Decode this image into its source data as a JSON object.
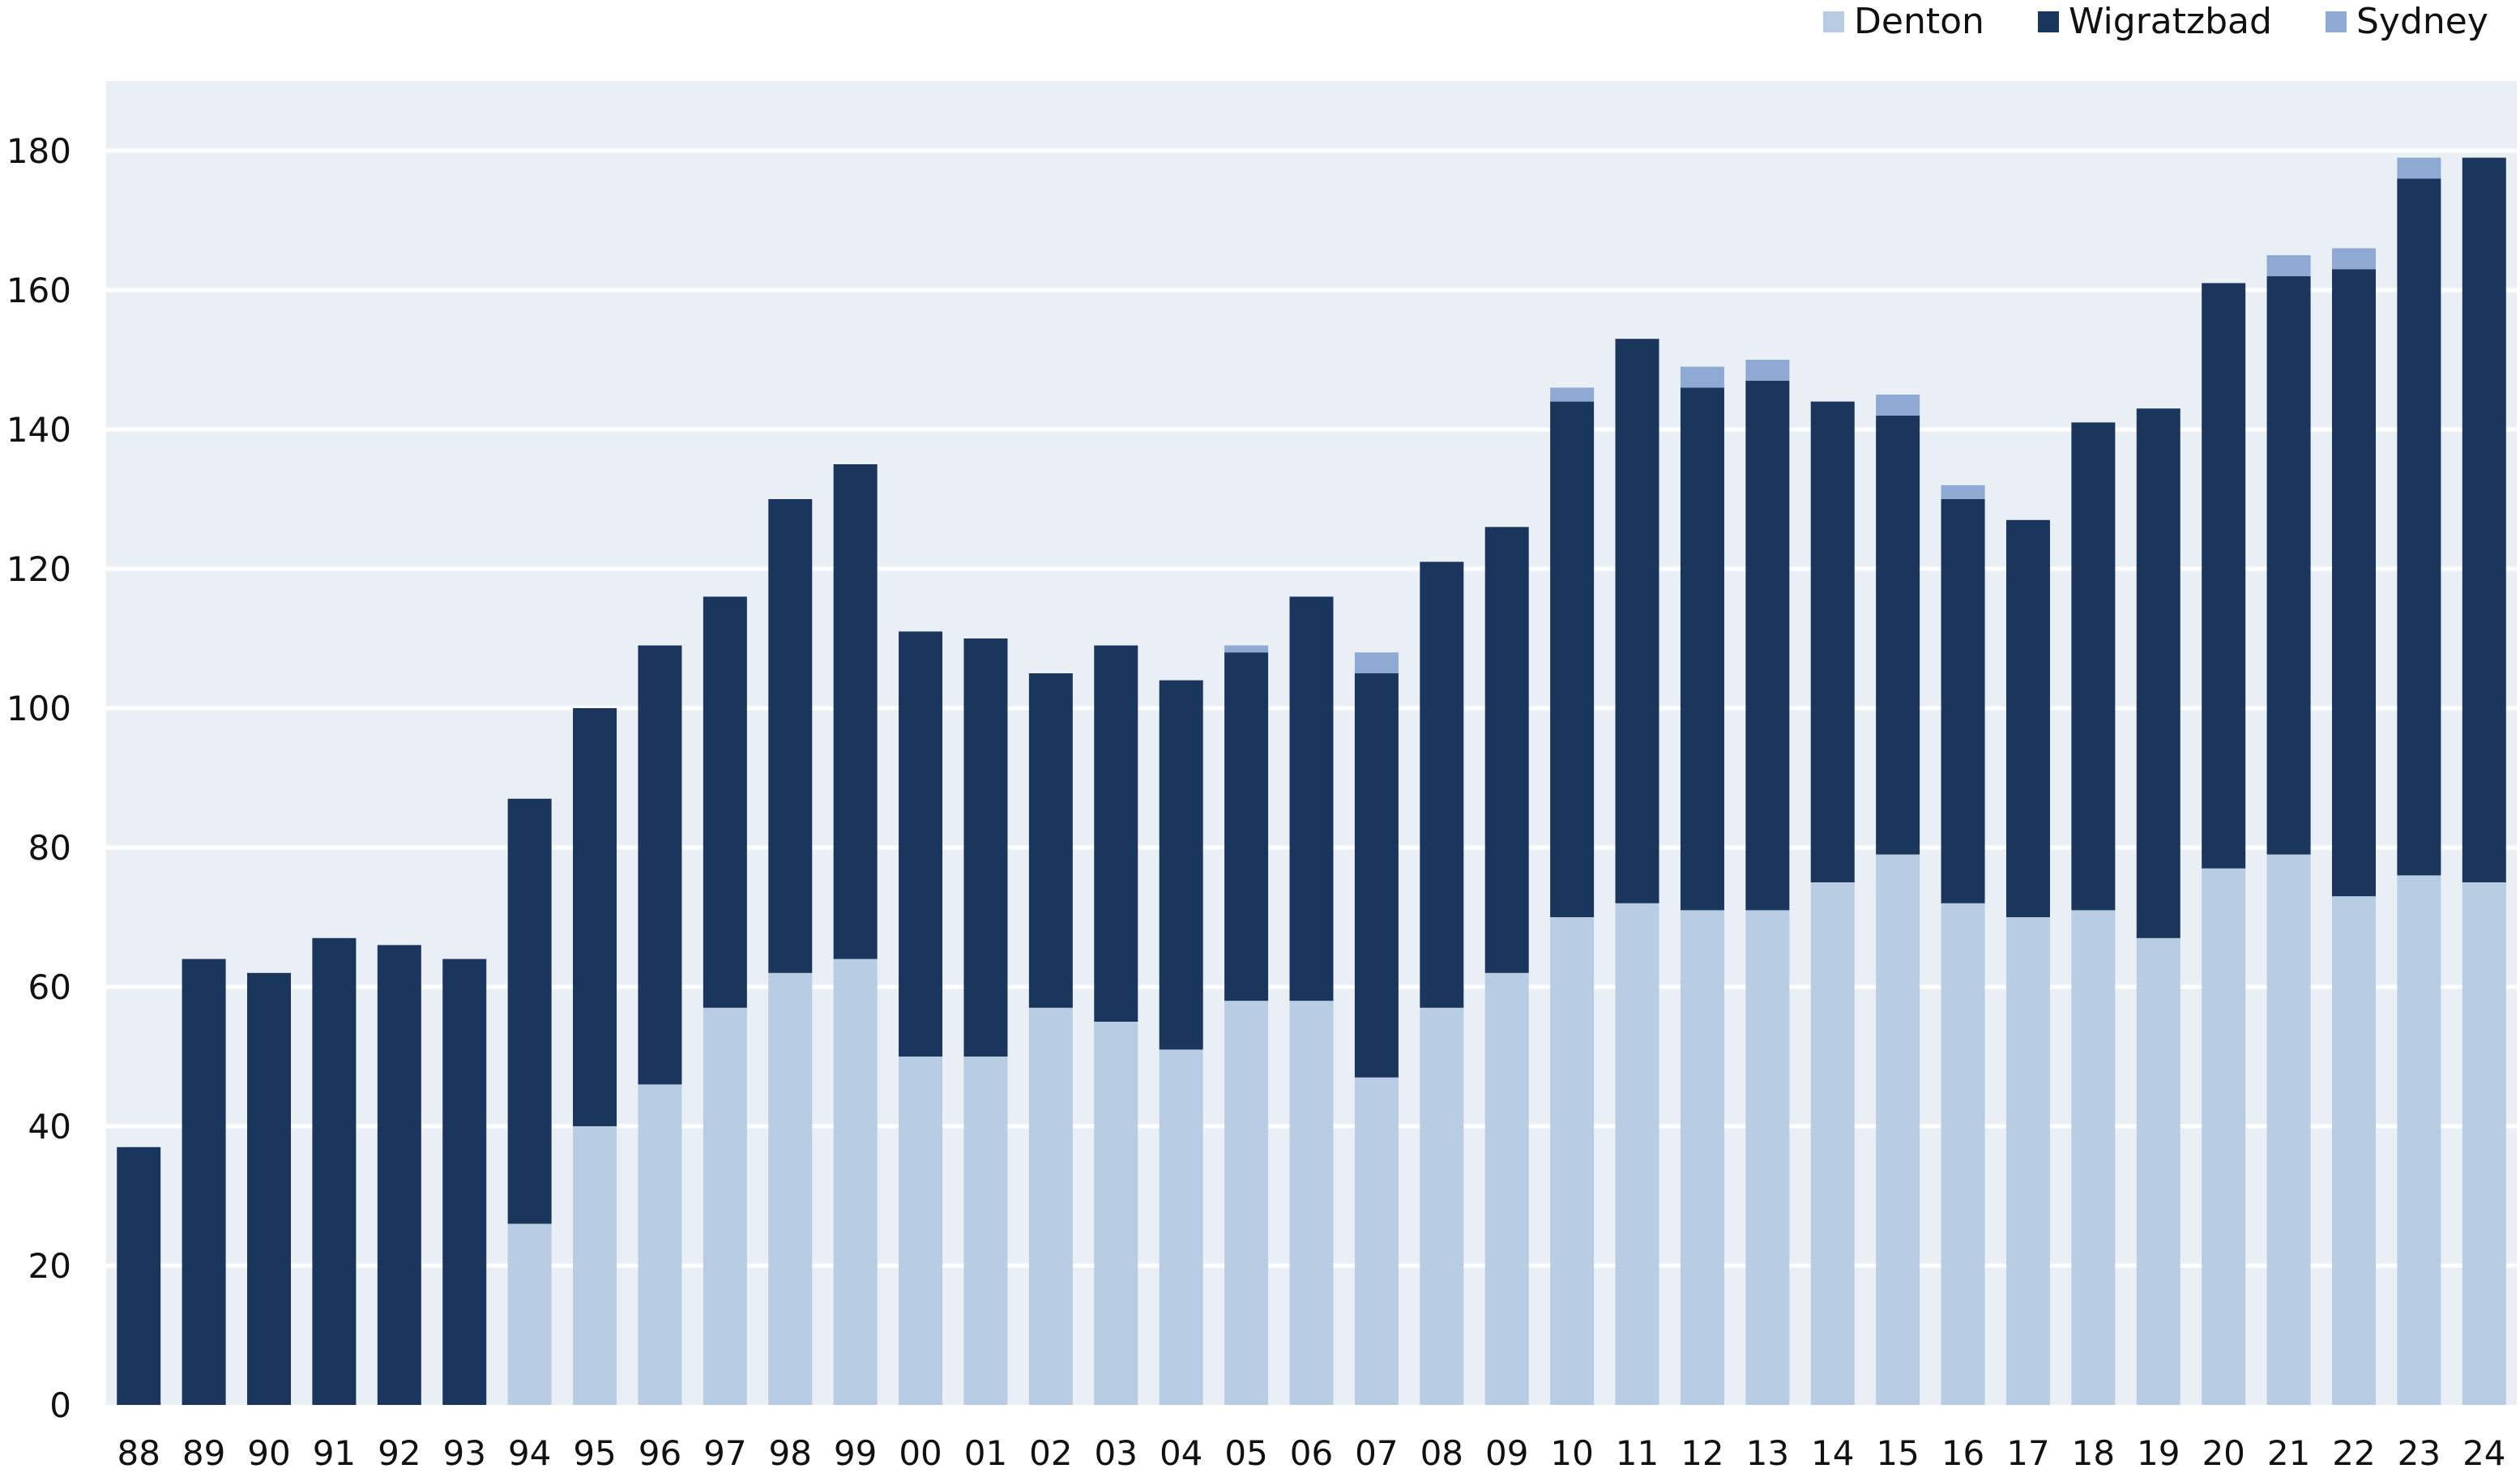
{
  "chart_data": {
    "type": "bar",
    "stacked": true,
    "title": "",
    "xlabel": "",
    "ylabel": "",
    "ylim": [
      0,
      190
    ],
    "yticks": [
      0,
      20,
      40,
      60,
      80,
      100,
      120,
      140,
      160,
      180
    ],
    "grid": true,
    "legend_position": "top-right",
    "categories": [
      "88",
      "89",
      "90",
      "91",
      "92",
      "93",
      "94",
      "95",
      "96",
      "97",
      "98",
      "99",
      "00",
      "01",
      "02",
      "03",
      "04",
      "05",
      "06",
      "07",
      "08",
      "09",
      "10",
      "11",
      "12",
      "13",
      "14",
      "15",
      "16",
      "17",
      "18",
      "19",
      "20",
      "21",
      "22",
      "23",
      "24"
    ],
    "series": [
      {
        "name": "Denton",
        "color": "#b8cce4",
        "values": [
          0,
          0,
          0,
          0,
          0,
          0,
          26,
          40,
          46,
          57,
          62,
          64,
          50,
          50,
          57,
          55,
          51,
          58,
          58,
          47,
          57,
          62,
          70,
          72,
          71,
          71,
          75,
          79,
          72,
          70,
          71,
          67,
          77,
          79,
          73,
          76,
          75
        ]
      },
      {
        "name": "Wigratzbad",
        "color": "#1a365d",
        "values": [
          37,
          64,
          62,
          67,
          66,
          64,
          61,
          60,
          63,
          59,
          68,
          71,
          61,
          60,
          48,
          54,
          53,
          50,
          58,
          58,
          64,
          64,
          74,
          81,
          75,
          76,
          69,
          63,
          58,
          57,
          70,
          76,
          84,
          83,
          90,
          100,
          104
        ]
      },
      {
        "name": "Sydney",
        "color": "#8eaad2",
        "values": [
          0,
          0,
          0,
          0,
          0,
          0,
          0,
          0,
          0,
          0,
          0,
          0,
          0,
          0,
          0,
          0,
          0,
          1,
          0,
          3,
          0,
          0,
          2,
          0,
          3,
          3,
          0,
          3,
          2,
          0,
          0,
          0,
          0,
          3,
          3,
          3,
          0
        ]
      }
    ]
  },
  "colors": {
    "plot_background": "#eaeff6",
    "gridline": "#ffffff"
  }
}
